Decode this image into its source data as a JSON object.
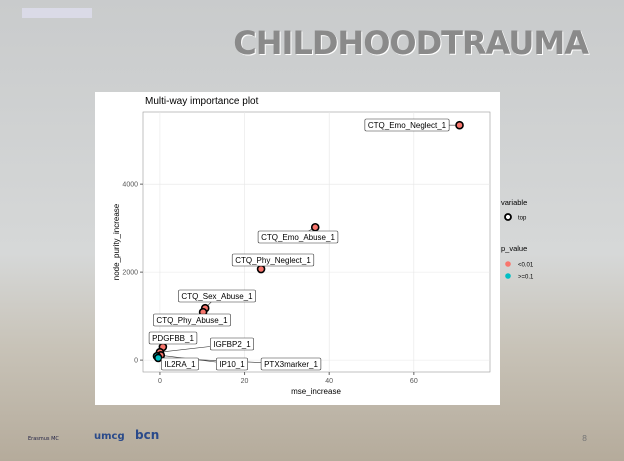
{
  "slide_title": "CHILDHOODTRAUMA",
  "page_number": "8",
  "footer_logos": [
    "Erasmus MC",
    "umcg",
    "bcn"
  ],
  "chart_data": {
    "type": "scatter",
    "title": "Multi-way importance plot",
    "x_label": "mse_increase",
    "y_label": "node_purity_increase",
    "xlim": [
      -4,
      78
    ],
    "ylim": [
      -270,
      5640
    ],
    "xticks": [
      0,
      20,
      40,
      60
    ],
    "yticks": [
      0,
      2000,
      4000
    ],
    "grid": true,
    "legend_position": "right",
    "shape_legend": {
      "title": "variable",
      "item": "top"
    },
    "color_legend_title": "p_value",
    "series": [
      {
        "name": "<0.01",
        "color": "#f8766d",
        "labels": [
          "CTQ_Emo_Neglect_1",
          "CTQ_Emo_Abuse_1",
          "CTQ_Phy_Neglect_1",
          "CTQ_Sex_Abuse_1",
          "CTQ_Phy_Abuse_1",
          "PDGFBB_1",
          "IGFBP2_1",
          "IP10_1"
        ],
        "x": [
          70.8,
          36.7,
          23.9,
          10.7,
          10.2,
          0.7,
          0,
          0.2
        ],
        "values": [
          5340,
          3020,
          2070,
          1180,
          1090,
          300,
          180,
          110
        ]
      },
      {
        "name": ">=0.1",
        "color": "#00bfc4",
        "labels": [
          "IL2RA_1",
          "PTX3marker_1"
        ],
        "x": [
          -0.7,
          -0.4
        ],
        "values": [
          90,
          50
        ]
      }
    ]
  }
}
